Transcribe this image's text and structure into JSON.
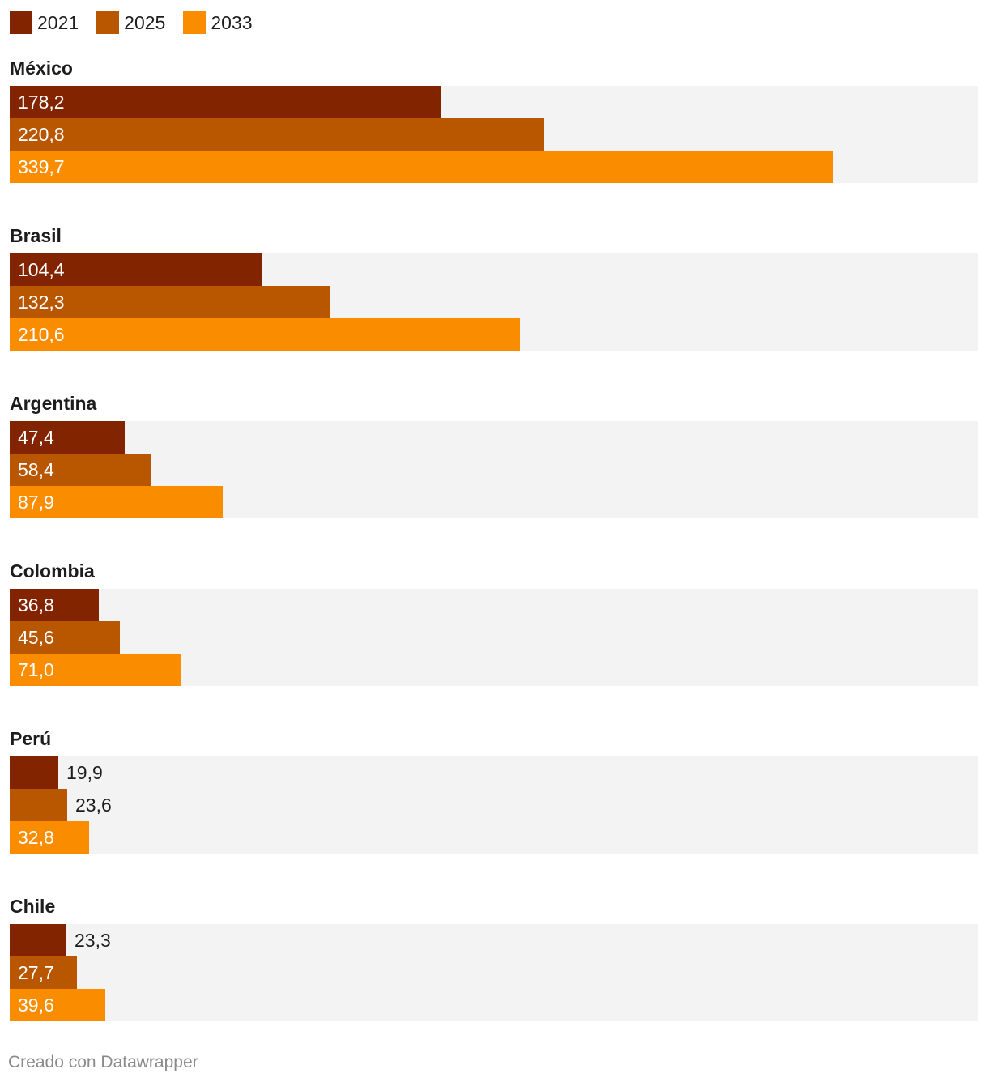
{
  "chart_data": {
    "type": "bar",
    "orientation": "horizontal",
    "grouping": "small-multiples-by-category",
    "categories": [
      "México",
      "Brasil",
      "Argentina",
      "Colombia",
      "Perú",
      "Chile"
    ],
    "series": [
      {
        "name": "2021",
        "color": "#832400",
        "values": [
          178.2,
          104.4,
          47.4,
          36.8,
          19.9,
          23.3
        ],
        "labels": [
          "178,2",
          "104,4",
          "47,4",
          "36,8",
          "19,9",
          "23,3"
        ]
      },
      {
        "name": "2025",
        "color": "#b85700",
        "values": [
          220.8,
          132.3,
          58.4,
          45.6,
          23.6,
          27.7
        ],
        "labels": [
          "220,8",
          "132,3",
          "58,4",
          "45,6",
          "23,6",
          "27,7"
        ]
      },
      {
        "name": "2033",
        "color": "#fa8c00",
        "values": [
          339.7,
          210.6,
          87.9,
          71.0,
          32.8,
          39.6
        ],
        "labels": [
          "339,7",
          "210,6",
          "87,9",
          "71,0",
          "32,8",
          "39,6"
        ]
      }
    ],
    "xlim": [
      0,
      400
    ],
    "title": "",
    "xlabel": "",
    "ylabel": "",
    "legend_position": "top-left",
    "grid": false,
    "track_color": "#f3f3f3"
  },
  "footer": {
    "credit": "Creado con Datawrapper"
  }
}
